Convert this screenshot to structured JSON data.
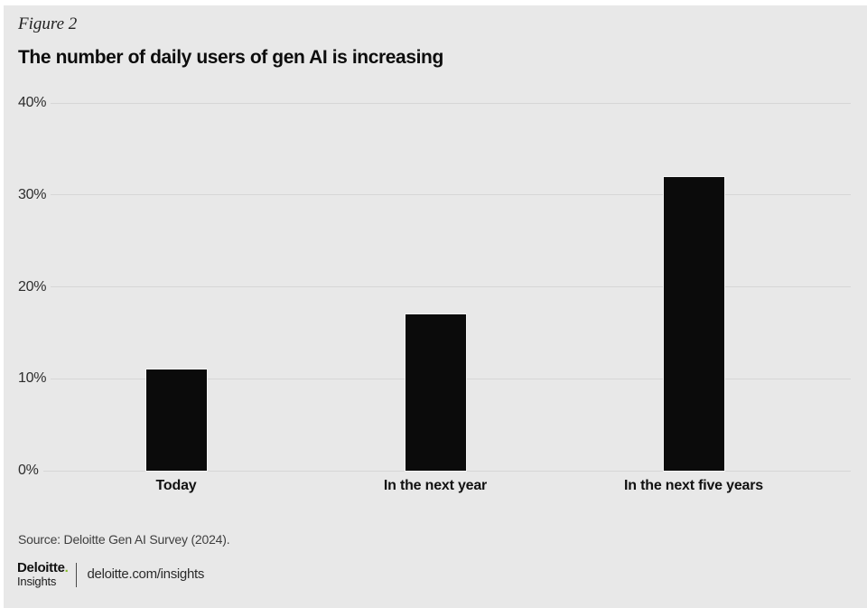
{
  "figure": {
    "label": "Figure 2",
    "title": "The number of daily users of gen AI is increasing",
    "source": "Source: Deloitte Gen AI Survey (2024)."
  },
  "chart_data": {
    "type": "bar",
    "categories": [
      "Today",
      "In the next year",
      "In the next five years"
    ],
    "values": [
      11,
      17,
      32
    ],
    "title": "The number of daily users of gen AI is increasing",
    "xlabel": "",
    "ylabel": "",
    "ylim": [
      0,
      40
    ],
    "yticks": [
      "0%",
      "10%",
      "20%",
      "30%",
      "40%"
    ],
    "unit": "percent",
    "grid": "horizontal gridlines on",
    "legend": "none",
    "bar_color": "#0b0b0b"
  },
  "footer": {
    "brand": "Deloitte",
    "brand_dot": ".",
    "brand_sub": "Insights",
    "site": "deloitte.com/insights"
  },
  "colors": {
    "page_background": "#ffffff",
    "figure_background": "#e8e8e8",
    "gridline": "#d6d6d6",
    "bar": "#0b0b0b",
    "accent_green": "#86bc25",
    "text": "#111111"
  }
}
